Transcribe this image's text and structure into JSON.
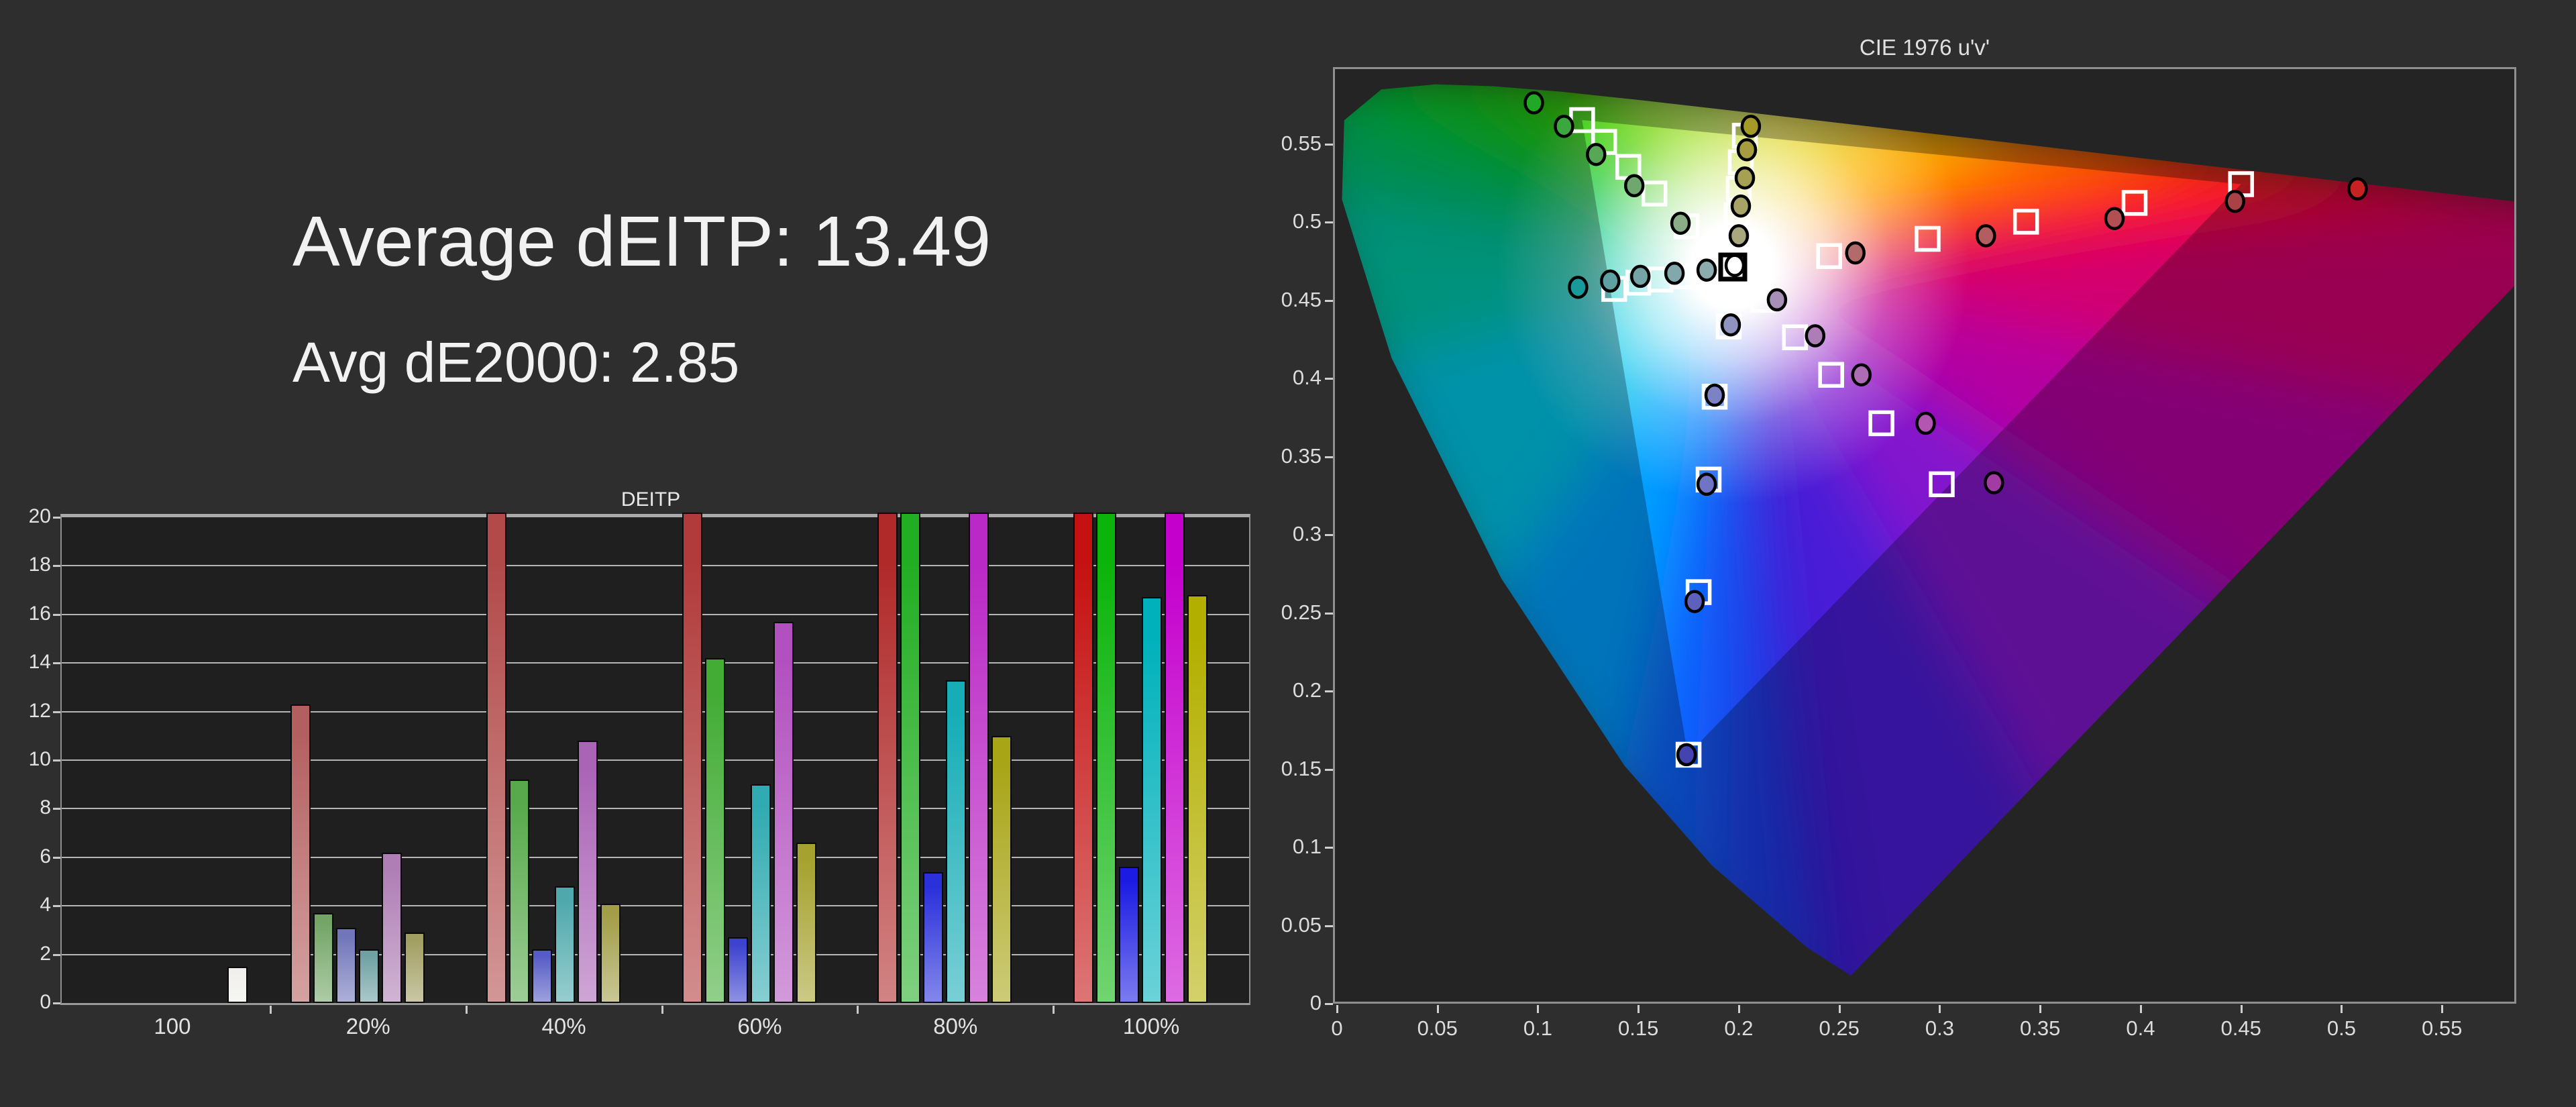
{
  "page": {
    "background": "#2e2e2e"
  },
  "summary": {
    "line1": "Average dEITP: 13.49",
    "line2": "Avg dE2000: 2.85"
  },
  "chart_data": [
    {
      "id": "deitp_bars",
      "type": "bar",
      "title": "DEITP",
      "ylim": [
        0,
        20
      ],
      "ytick_step": 2,
      "ytick_labels": [
        "0",
        "2",
        "4",
        "6",
        "8",
        "10",
        "12",
        "14",
        "16",
        "18",
        "20"
      ],
      "grid": true,
      "categories": [
        "100",
        "20%",
        "40%",
        "60%",
        "80%",
        "100%"
      ],
      "series_names": [
        "white",
        "red",
        "green",
        "blue",
        "cyan",
        "magenta",
        "yellow"
      ],
      "groups": [
        {
          "label": "100",
          "bars": [
            {
              "series": "white",
              "value": 1.5,
              "clipped": false,
              "color": "#f0efec",
              "offset": 228
            }
          ]
        },
        {
          "label": "20%",
          "bars": [
            {
              "series": "red",
              "value": 12.3,
              "clipped": false,
              "color": "#b45f5f"
            },
            {
              "series": "green",
              "value": 3.7,
              "clipped": false,
              "color": "#74a567"
            },
            {
              "series": "blue",
              "value": 3.1,
              "clipped": false,
              "color": "#7176ba"
            },
            {
              "series": "cyan",
              "value": 2.2,
              "clipped": false,
              "color": "#6fa1a4"
            },
            {
              "series": "magenta",
              "value": 6.2,
              "clipped": false,
              "color": "#ae7eb4"
            },
            {
              "series": "yellow",
              "value": 2.9,
              "clipped": false,
              "color": "#a29f63"
            }
          ]
        },
        {
          "label": "40%",
          "bars": [
            {
              "series": "red",
              "value": 20,
              "clipped": true,
              "color": "#b24a4a"
            },
            {
              "series": "green",
              "value": 9.2,
              "clipped": false,
              "color": "#57a94b"
            },
            {
              "series": "blue",
              "value": 2.2,
              "clipped": false,
              "color": "#565cc6"
            },
            {
              "series": "cyan",
              "value": 4.8,
              "clipped": false,
              "color": "#4ea8ac"
            },
            {
              "series": "magenta",
              "value": 10.8,
              "clipped": false,
              "color": "#aa64b6"
            },
            {
              "series": "yellow",
              "value": 4.1,
              "clipped": false,
              "color": "#a29e48"
            }
          ]
        },
        {
          "label": "60%",
          "bars": [
            {
              "series": "red",
              "value": 20,
              "clipped": true,
              "color": "#b13b3b"
            },
            {
              "series": "green",
              "value": 14.2,
              "clipped": false,
              "color": "#42ac35"
            },
            {
              "series": "blue",
              "value": 2.7,
              "clipped": false,
              "color": "#3d43cf"
            },
            {
              "series": "cyan",
              "value": 9.0,
              "clipped": false,
              "color": "#30abb1"
            },
            {
              "series": "magenta",
              "value": 15.7,
              "clipped": false,
              "color": "#b250bf"
            },
            {
              "series": "yellow",
              "value": 6.6,
              "clipped": false,
              "color": "#a5a22f"
            }
          ]
        },
        {
          "label": "80%",
          "bars": [
            {
              "series": "red",
              "value": 20,
              "clipped": true,
              "color": "#b02a2a"
            },
            {
              "series": "green",
              "value": 20,
              "clipped": true,
              "color": "#22ae22"
            },
            {
              "series": "blue",
              "value": 5.4,
              "clipped": false,
              "color": "#2a30da"
            },
            {
              "series": "cyan",
              "value": 13.3,
              "clipped": false,
              "color": "#16adb6"
            },
            {
              "series": "magenta",
              "value": 20,
              "clipped": true,
              "color": "#ba28c5"
            },
            {
              "series": "yellow",
              "value": 11.0,
              "clipped": false,
              "color": "#a8a517"
            }
          ]
        },
        {
          "label": "100%",
          "bars": [
            {
              "series": "red",
              "value": 20,
              "clipped": true,
              "color": "#c51111"
            },
            {
              "series": "green",
              "value": 20,
              "clipped": true,
              "color": "#0ab40a"
            },
            {
              "series": "blue",
              "value": 5.6,
              "clipped": false,
              "color": "#1b1be4"
            },
            {
              "series": "cyan",
              "value": 16.7,
              "clipped": false,
              "color": "#00b1bb"
            },
            {
              "series": "magenta",
              "value": 20,
              "clipped": true,
              "color": "#c400cd"
            },
            {
              "series": "yellow",
              "value": 16.8,
              "clipped": false,
              "color": "#b3af00"
            }
          ]
        }
      ]
    },
    {
      "id": "cie_1976",
      "type": "scatter",
      "title": "CIE 1976 u'v'",
      "xlim": [
        0,
        0.587
      ],
      "ylim": [
        0,
        0.5966
      ],
      "xtick_labels": [
        "0",
        "0.05",
        "0.1",
        "0.15",
        "0.2",
        "0.25",
        "0.3",
        "0.35",
        "0.4",
        "0.45",
        "0.5",
        "0.55"
      ],
      "ytick_labels": [
        "0",
        "0.05",
        "0.1",
        "0.15",
        "0.2",
        "0.25",
        "0.3",
        "0.35",
        "0.4",
        "0.45",
        "0.5",
        "0.55"
      ],
      "legend": {
        "target_marker": "open white square",
        "measured_marker": "filled circle"
      },
      "white_point": {
        "target": [
          0.198,
          0.47
        ],
        "measured": [
          0.199,
          0.471
        ],
        "measured_color": "#ffffff"
      },
      "sweeps": [
        {
          "name": "red",
          "targets": [
            [
              0.246,
              0.477
            ],
            [
              0.295,
              0.488
            ],
            [
              0.344,
              0.499
            ],
            [
              0.398,
              0.511
            ],
            [
              0.451,
              0.523
            ]
          ],
          "measured": [
            [
              0.259,
              0.479
            ],
            [
              0.324,
              0.49
            ],
            [
              0.388,
              0.501
            ],
            [
              0.448,
              0.512
            ],
            [
              0.509,
              0.52
            ]
          ],
          "measured_colors": [
            "#b36a6a",
            "#b25d5f",
            "#b24f52",
            "#a84246",
            "#c62222"
          ]
        },
        {
          "name": "green",
          "targets": [
            [
              0.175,
              0.496
            ],
            [
              0.159,
              0.517
            ],
            [
              0.146,
              0.534
            ],
            [
              0.134,
              0.55
            ],
            [
              0.123,
              0.564
            ]
          ],
          "measured": [
            [
              0.172,
              0.498
            ],
            [
              0.149,
              0.522
            ],
            [
              0.13,
              0.542
            ],
            [
              0.114,
              0.56
            ],
            [
              0.099,
              0.575
            ]
          ],
          "measured_colors": [
            "#8aac86",
            "#6fa76f",
            "#57a757",
            "#3aa83e",
            "#21a826"
          ]
        },
        {
          "name": "blue",
          "targets": [
            [
              0.196,
              0.432
            ],
            [
              0.189,
              0.387
            ],
            [
              0.186,
              0.334
            ],
            [
              0.181,
              0.262
            ],
            [
              0.176,
              0.158
            ]
          ],
          "measured": [
            [
              0.197,
              0.433
            ],
            [
              0.189,
              0.388
            ],
            [
              0.185,
              0.331
            ],
            [
              0.179,
              0.256
            ],
            [
              0.175,
              0.158
            ]
          ],
          "measured_colors": [
            "#8f93c0",
            "#7d82c4",
            "#6f74c4",
            "#5d61bd",
            "#4444b0"
          ]
        },
        {
          "name": "cyan",
          "targets": [
            [
              0.186,
              0.468
            ],
            [
              0.174,
              0.464
            ],
            [
              0.162,
              0.462
            ],
            [
              0.151,
              0.46
            ],
            [
              0.139,
              0.456
            ]
          ],
          "measured": [
            [
              0.185,
              0.468
            ],
            [
              0.169,
              0.466
            ],
            [
              0.152,
              0.464
            ],
            [
              0.137,
              0.461
            ],
            [
              0.121,
              0.457
            ]
          ],
          "measured_colors": [
            "#8cacae",
            "#83a8ab",
            "#74a4a6",
            "#5fa0a2",
            "#189a9b"
          ]
        },
        {
          "name": "magenta",
          "targets": [
            [
              0.213,
              0.449
            ],
            [
              0.229,
              0.425
            ],
            [
              0.247,
              0.401
            ],
            [
              0.272,
              0.37
            ],
            [
              0.302,
              0.331
            ]
          ],
          "measured": [
            [
              0.22,
              0.449
            ],
            [
              0.239,
              0.426
            ],
            [
              0.262,
              0.401
            ],
            [
              0.294,
              0.37
            ],
            [
              0.328,
              0.332
            ]
          ],
          "measured_colors": [
            "#a78fb8",
            "#ad7db5",
            "#ae6cb5",
            "#b256b2",
            "#a23ba2"
          ]
        },
        {
          "name": "yellow",
          "targets": [
            [
              0.199,
              0.486
            ],
            [
              0.2,
              0.503
            ],
            [
              0.201,
              0.52
            ],
            [
              0.202,
              0.537
            ],
            [
              0.204,
              0.554
            ]
          ],
          "measured": [
            [
              0.201,
              0.49
            ],
            [
              0.202,
              0.509
            ],
            [
              0.204,
              0.527
            ],
            [
              0.205,
              0.545
            ],
            [
              0.207,
              0.56
            ]
          ],
          "measured_colors": [
            "#a8a77e",
            "#a7a468",
            "#a6a052",
            "#a69e3e",
            "#a49a28"
          ]
        }
      ],
      "gamut_triangle": [
        [
          0.451,
          0.523
        ],
        [
          0.123,
          0.564
        ],
        [
          0.1756,
          0.158
        ]
      ],
      "locus": [
        [
          0.2568,
          0.0166
        ],
        [
          0.2347,
          0.035
        ],
        [
          0.1877,
          0.0871
        ],
        [
          0.1441,
          0.151
        ],
        [
          0.0828,
          0.2708
        ],
        [
          0.0282,
          0.4117
        ],
        [
          0.0035,
          0.5131
        ],
        [
          0.0046,
          0.5639
        ],
        [
          0.0231,
          0.5836
        ],
        [
          0.0501,
          0.5868
        ],
        [
          0.0792,
          0.5856
        ],
        [
          0.1127,
          0.5821
        ],
        [
          0.1531,
          0.5766
        ],
        [
          0.2026,
          0.5693
        ],
        [
          0.2623,
          0.5604
        ],
        [
          0.3315,
          0.5501
        ],
        [
          0.4035,
          0.5393
        ],
        [
          0.4691,
          0.5296
        ],
        [
          0.5203,
          0.5219
        ],
        [
          0.583,
          0.5125
        ],
        [
          0.6234,
          0.5065
        ],
        [
          0.5318,
          0.384
        ],
        [
          0.4401,
          0.2616
        ],
        [
          0.3485,
          0.1391
        ]
      ],
      "segment_hues": [
        "#2f14d2",
        "#1e3ce8",
        "#0a64ff",
        "#00a0ff",
        "#00c8e8",
        "#00c8a8",
        "#00c070",
        "#00c83c",
        "#0cc81e",
        "#14c814",
        "#28cd0a",
        "#50d200",
        "#96dc00",
        "#e1d200",
        "#ffb400",
        "#ff6e00",
        "#ff3200",
        "#ff0a0a",
        "#f00032",
        "#dc0050",
        "#d20070",
        "#b400a0",
        "#8214cd",
        "#4b1ed7"
      ],
      "colors": {
        "target_stroke": "#ffffff",
        "white_target_stroke": "#000000",
        "circle_stroke": "#000000",
        "outside_gamut_dim": 0.27
      }
    }
  ]
}
